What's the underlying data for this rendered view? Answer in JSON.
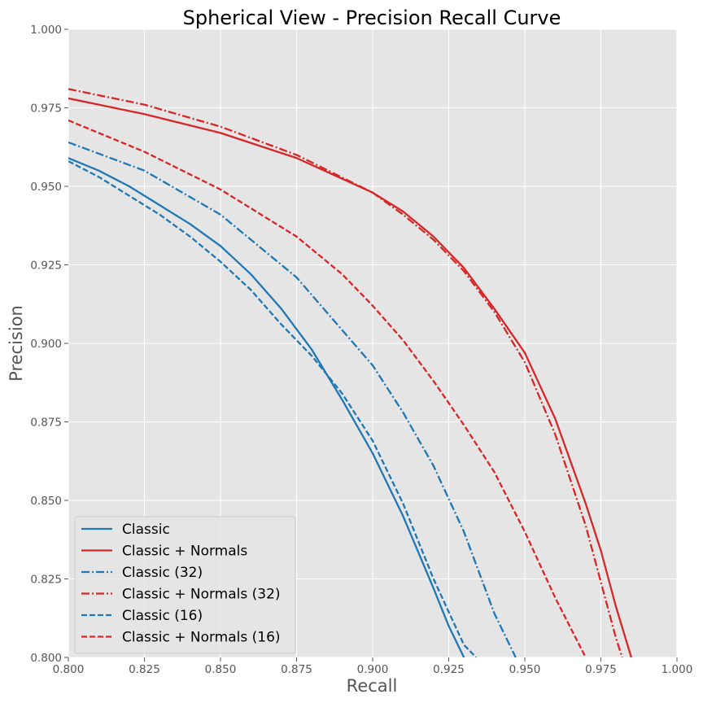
{
  "chart_data": {
    "type": "line",
    "title": "Spherical View - Precision Recall Curve",
    "xlabel": "Recall",
    "ylabel": "Precision",
    "xlim": [
      0.8,
      1.0
    ],
    "ylim": [
      0.8,
      1.0
    ],
    "x_ticks": [
      "0.800",
      "0.825",
      "0.850",
      "0.875",
      "0.900",
      "0.925",
      "0.950",
      "0.975",
      "1.000"
    ],
    "y_ticks": [
      "0.800",
      "0.825",
      "0.850",
      "0.875",
      "0.900",
      "0.925",
      "0.950",
      "0.975",
      "1.000"
    ],
    "grid": true,
    "legend_position": "lower-left",
    "background": "#e5e5e5",
    "series": [
      {
        "name": "Classic",
        "color": "#1f77b4",
        "style": "solid",
        "x": [
          0.8,
          0.81,
          0.82,
          0.83,
          0.84,
          0.85,
          0.86,
          0.87,
          0.88,
          0.89,
          0.9,
          0.91,
          0.92,
          0.925,
          0.93
        ],
        "y": [
          0.959,
          0.955,
          0.95,
          0.944,
          0.938,
          0.931,
          0.922,
          0.911,
          0.898,
          0.882,
          0.865,
          0.845,
          0.822,
          0.81,
          0.8
        ]
      },
      {
        "name": "Classic + Normals",
        "color": "#d62728",
        "style": "solid",
        "x": [
          0.8,
          0.825,
          0.85,
          0.875,
          0.9,
          0.91,
          0.92,
          0.93,
          0.94,
          0.95,
          0.96,
          0.97,
          0.975,
          0.98,
          0.985
        ],
        "y": [
          0.978,
          0.973,
          0.967,
          0.959,
          0.948,
          0.942,
          0.934,
          0.924,
          0.911,
          0.897,
          0.876,
          0.849,
          0.834,
          0.816,
          0.8
        ]
      },
      {
        "name": "Classic (32)",
        "color": "#1f77b4",
        "style": "dashdot",
        "x": [
          0.8,
          0.825,
          0.85,
          0.875,
          0.9,
          0.91,
          0.92,
          0.93,
          0.94,
          0.947
        ],
        "y": [
          0.964,
          0.955,
          0.941,
          0.921,
          0.893,
          0.878,
          0.861,
          0.84,
          0.814,
          0.8
        ]
      },
      {
        "name": "Classic + Normals (32)",
        "color": "#d62728",
        "style": "dashdot",
        "x": [
          0.8,
          0.825,
          0.85,
          0.875,
          0.9,
          0.91,
          0.92,
          0.93,
          0.94,
          0.95,
          0.96,
          0.97,
          0.975,
          0.98,
          0.982
        ],
        "y": [
          0.981,
          0.976,
          0.969,
          0.96,
          0.948,
          0.941,
          0.933,
          0.923,
          0.91,
          0.894,
          0.871,
          0.842,
          0.824,
          0.806,
          0.8
        ]
      },
      {
        "name": "Classic (16)",
        "color": "#1f77b4",
        "style": "dashed",
        "x": [
          0.8,
          0.81,
          0.82,
          0.83,
          0.84,
          0.85,
          0.86,
          0.87,
          0.88,
          0.89,
          0.9,
          0.91,
          0.92,
          0.93,
          0.934
        ],
        "y": [
          0.958,
          0.953,
          0.947,
          0.941,
          0.934,
          0.926,
          0.917,
          0.906,
          0.896,
          0.884,
          0.869,
          0.849,
          0.825,
          0.804,
          0.8
        ]
      },
      {
        "name": "Classic + Normals (16)",
        "color": "#d62728",
        "style": "dashed",
        "x": [
          0.8,
          0.825,
          0.85,
          0.875,
          0.89,
          0.9,
          0.91,
          0.92,
          0.93,
          0.94,
          0.95,
          0.96,
          0.97
        ],
        "y": [
          0.971,
          0.961,
          0.949,
          0.934,
          0.922,
          0.912,
          0.901,
          0.888,
          0.874,
          0.859,
          0.84,
          0.819,
          0.8
        ]
      }
    ]
  }
}
